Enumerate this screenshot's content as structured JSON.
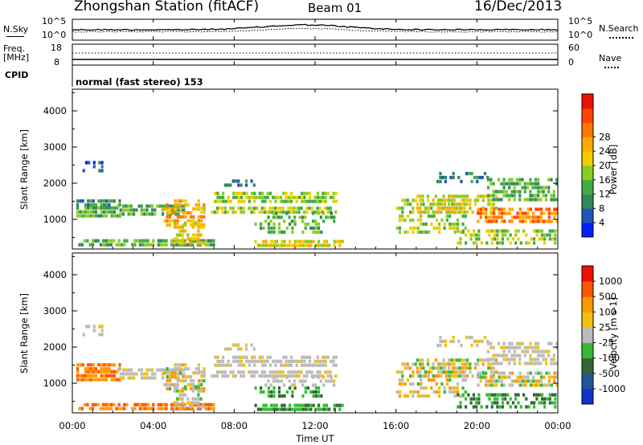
{
  "header": {
    "station": "Zhongshan Station (fitACF)",
    "beam": "Beam 01",
    "date": "16/Dec/2013"
  },
  "panel_labels": {
    "nsky": "N.Sky",
    "nsky_hi": "10^5",
    "nsky_lo": "10^0",
    "nsearch": "N.Search",
    "nsearch_hi": "10^5",
    "nsearch_lo": "10^0",
    "freq_l1": "Freq.",
    "freq_l2": "[MHz]",
    "freq_hi": "18",
    "freq_lo": "8",
    "nave": "Nave",
    "nave_hi": "60",
    "nave_lo": "0",
    "cpid": "CPID",
    "mode": "normal (fast stereo) 153"
  },
  "chart_data": [
    {
      "type": "heatmap",
      "name_printed": "Power [dB]",
      "ylabel": "Slant Range [km]",
      "xlabel": "Time UT",
      "x_ticks": [
        "00:00",
        "04:00",
        "08:00",
        "12:00",
        "16:00",
        "20:00",
        "00:00"
      ],
      "x_range_hours": [
        0,
        24
      ],
      "y_ticks": [
        1000,
        2000,
        3000,
        4000
      ],
      "ylim": [
        180,
        4600
      ],
      "colorbar": {
        "label": "Power [dB]",
        "ticks": [
          "4",
          "8",
          "12",
          "16",
          "20",
          "24",
          "28"
        ],
        "colors": [
          "#0022ff",
          "#2255bb",
          "#338855",
          "#44aa44",
          "#88cc22",
          "#eecc00",
          "#ffaa00",
          "#ff7700",
          "#ff4400",
          "#ee1100"
        ]
      }
    },
    {
      "type": "heatmap",
      "ylabel": "Slant Range [km]",
      "xlabel": "Time UT",
      "x_ticks": [
        "00:00",
        "04:00",
        "08:00",
        "12:00",
        "16:00",
        "20:00",
        "00:00"
      ],
      "x_range_hours": [
        0,
        24
      ],
      "y_ticks": [
        1000,
        2000,
        3000,
        4000
      ],
      "ylim": [
        180,
        4600
      ],
      "colorbar": {
        "label": "Velocity [m s-1]",
        "ticks": [
          "1000",
          "500",
          "100",
          "25",
          "-25",
          "-100",
          "-500",
          "-1000"
        ],
        "colors": [
          "#1133cc",
          "#225599",
          "#336633",
          "#33bb33",
          "#bbbbbb",
          "#f0c010",
          "#ff9900",
          "#ff5500",
          "#ee1100"
        ]
      }
    }
  ]
}
